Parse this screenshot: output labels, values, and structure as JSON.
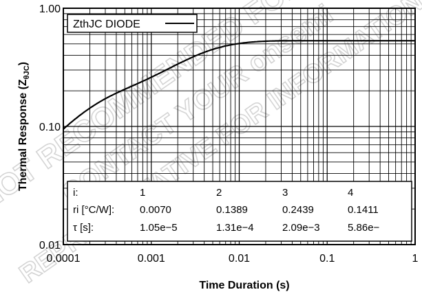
{
  "chart_data": {
    "type": "line",
    "xscale": "log",
    "yscale": "log",
    "xlim": [
      0.0001,
      1
    ],
    "ylim": [
      0.01,
      1.0
    ],
    "grid": true,
    "xlabel": "Time Duration (s)",
    "ylabel": "Thermal Response (Z",
    "ylabel_sub": "θJC",
    "ylabel_close": ")",
    "x_ticks": [
      "0.0001",
      "0.001",
      "0.01",
      "0.1",
      "1"
    ],
    "y_ticks": [
      "0.01",
      "0.10",
      "1.00"
    ],
    "legend": "top-left",
    "series": [
      {
        "name": "ZthJC DIODE",
        "ri": [
          0.007,
          0.1389,
          0.2439,
          0.1411
        ],
        "tau": [
          1.05e-05,
          0.000131,
          0.00209,
          0.00586
        ]
      }
    ],
    "table": {
      "rows": [
        [
          "i:",
          "1",
          "2",
          "3",
          "4"
        ],
        [
          "ri [°C/W]:",
          "0.0070",
          "0.1389",
          "0.2439",
          "0.1411"
        ],
        [
          "τ [s]:",
          "1.05e−5",
          "1.31e−4",
          "2.09e−3",
          "5.86e−"
        ]
      ]
    }
  },
  "watermark": {
    "lines": [
      "NOT RECOMMENDED FOR NEW",
      "CONTACT YOUR onsemi",
      "REPRESENTATIVE FOR INFORMATION"
    ]
  }
}
